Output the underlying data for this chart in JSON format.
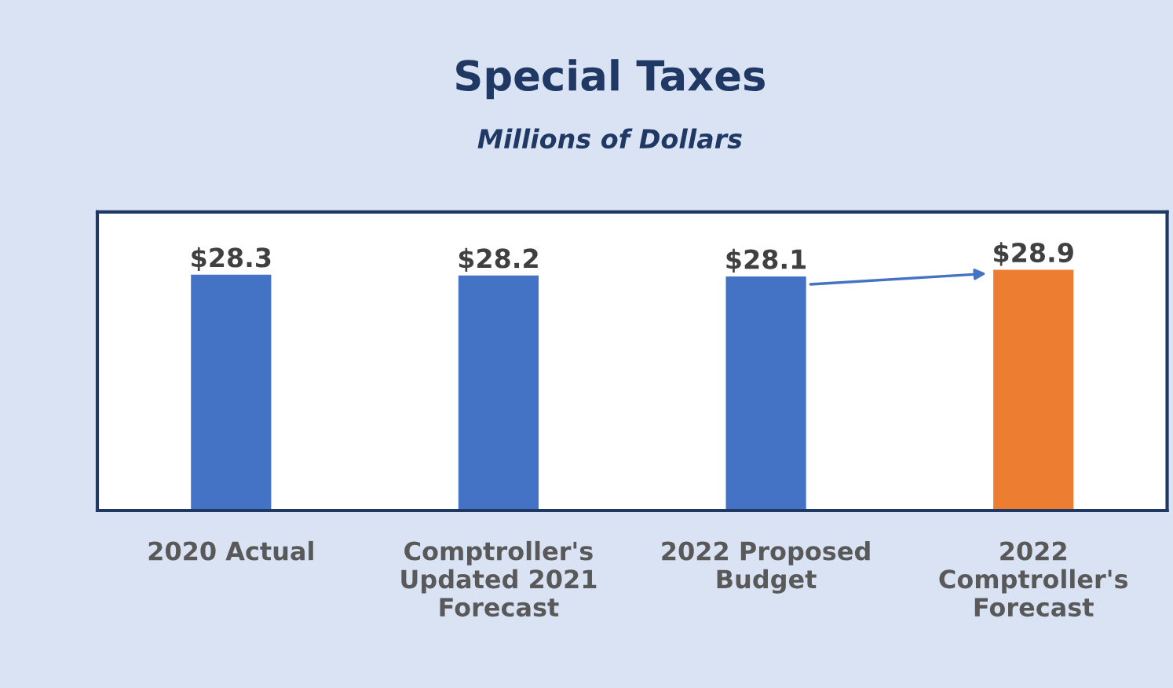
{
  "chart_data": {
    "type": "bar",
    "title": "Special Taxes",
    "subtitle": "Millions of Dollars",
    "categories": [
      "2020 Actual",
      "Comptroller's\nUpdated 2021\nForecast",
      "2022 Proposed\nBudget",
      "2022\nComptroller's\nForecast"
    ],
    "values": [
      28.3,
      28.2,
      28.1,
      28.9
    ],
    "colors": [
      "#4472c4",
      "#4472c4",
      "#4472c4",
      "#ed7d31"
    ],
    "value_labels": [
      "$28.3",
      "$28.2",
      "$28.1",
      "$28.9"
    ],
    "grid": false,
    "legend": false
  }
}
